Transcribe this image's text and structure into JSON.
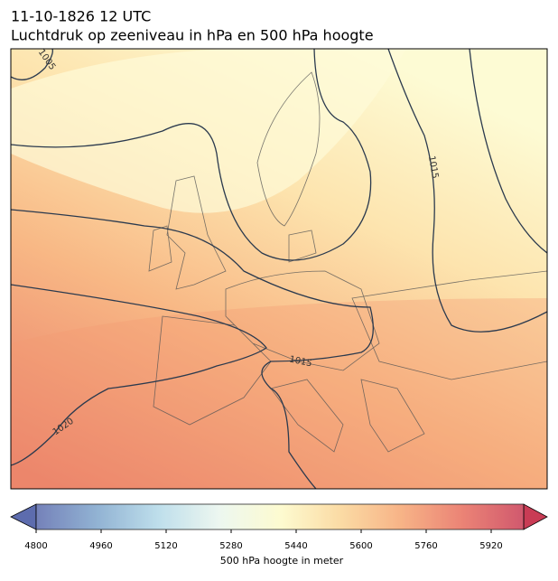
{
  "title": [
    "11-10-1826 12 UTC",
    "Luchtdruk op zeeniveau in hPa en 500 hPa hoogte"
  ],
  "contour_labels": [
    1005,
    1015,
    1015,
    1020
  ],
  "colorbar": {
    "lim": [
      4800,
      6000
    ],
    "ticks": [
      4800,
      4960,
      5120,
      5280,
      5440,
      5600,
      5760,
      5920
    ],
    "label": "500 hPa hoogte in meter",
    "cmap": [
      "#5d6cae",
      "#7fa6cc",
      "#b3d9e8",
      "#eaf6ee",
      "#fdfbc9",
      "#fbd595",
      "#f6a672",
      "#e86e5e",
      "#c93c55"
    ]
  }
}
